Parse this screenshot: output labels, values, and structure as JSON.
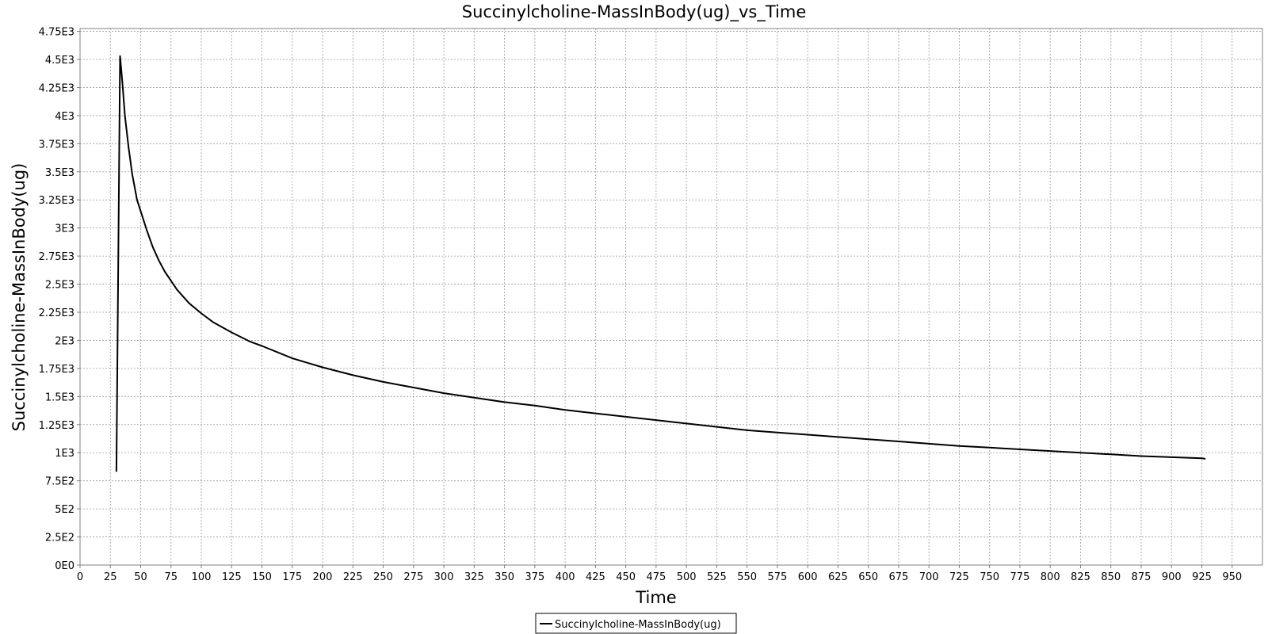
{
  "chart_data": {
    "type": "line",
    "title": "Succinylcholine-MassInBody(ug)_vs_Time",
    "xlabel": "Time",
    "ylabel": "Succinylcholine-MassInBody(ug)",
    "xlim": [
      0,
      975
    ],
    "ylim": [
      0,
      4775
    ],
    "x_ticks": [
      0,
      25,
      50,
      75,
      100,
      125,
      150,
      175,
      200,
      225,
      250,
      275,
      300,
      325,
      350,
      375,
      400,
      425,
      450,
      475,
      500,
      525,
      550,
      575,
      600,
      625,
      650,
      675,
      700,
      725,
      750,
      775,
      800,
      825,
      850,
      875,
      900,
      925,
      950
    ],
    "x_tick_labels": [
      "0",
      "25",
      "50",
      "75",
      "100",
      "125",
      "150",
      "175",
      "200",
      "225",
      "250",
      "275",
      "300",
      "325",
      "350",
      "375",
      "400",
      "425",
      "450",
      "475",
      "500",
      "525",
      "550",
      "575",
      "600",
      "625",
      "650",
      "675",
      "700",
      "725",
      "750",
      "775",
      "800",
      "825",
      "850",
      "875",
      "900",
      "925",
      "950"
    ],
    "y_ticks": [
      0,
      250,
      500,
      750,
      1000,
      1250,
      1500,
      1750,
      2000,
      2250,
      2500,
      2750,
      3000,
      3250,
      3500,
      3750,
      4000,
      4250,
      4500,
      4750
    ],
    "y_tick_labels": [
      "0E0",
      "2.5E2",
      "5E2",
      "7.5E2",
      "1E3",
      "1.25E3",
      "1.5E3",
      "1.75E3",
      "2E3",
      "2.25E3",
      "2.5E3",
      "2.75E3",
      "3E3",
      "3.25E3",
      "3.5E3",
      "3.75E3",
      "4E3",
      "4.25E3",
      "4.5E3",
      "4.75E3"
    ],
    "grid": true,
    "legend_position": "bottom-center",
    "series": [
      {
        "name": "Succinylcholine-MassInBody(ug)",
        "color": "#000000",
        "x": [
          30,
          33,
          35,
          37,
          40,
          43,
          47,
          50,
          55,
          60,
          65,
          70,
          75,
          80,
          90,
          100,
          110,
          125,
          140,
          150,
          175,
          200,
          225,
          250,
          275,
          300,
          325,
          350,
          375,
          400,
          425,
          450,
          475,
          500,
          525,
          550,
          575,
          600,
          625,
          650,
          675,
          700,
          725,
          750,
          775,
          800,
          825,
          850,
          875,
          900,
          925,
          928
        ],
        "y": [
          830,
          4530,
          4280,
          4000,
          3720,
          3480,
          3250,
          3150,
          2980,
          2830,
          2710,
          2610,
          2530,
          2450,
          2330,
          2240,
          2160,
          2070,
          1990,
          1950,
          1840,
          1760,
          1690,
          1630,
          1580,
          1530,
          1490,
          1450,
          1420,
          1380,
          1350,
          1320,
          1290,
          1260,
          1230,
          1200,
          1180,
          1160,
          1140,
          1120,
          1100,
          1080,
          1060,
          1045,
          1030,
          1015,
          1000,
          985,
          970,
          960,
          950,
          945
        ]
      }
    ]
  }
}
